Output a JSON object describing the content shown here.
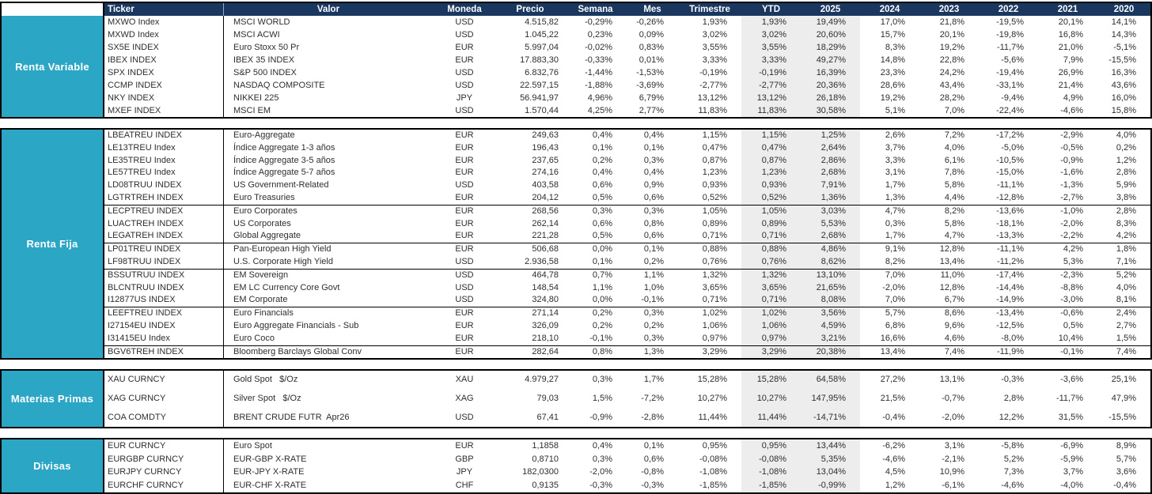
{
  "table": {
    "columns": [
      "Ticker",
      "Valor",
      "Moneda",
      "Precio",
      "Semana",
      "Mes",
      "Trimestre",
      "YTD",
      "2025",
      "2024",
      "2023",
      "2022",
      "2021",
      "2020"
    ],
    "sections": [
      {
        "id": "renta-variable",
        "label": "Renta Variable",
        "has_header": true,
        "groups": [
          [
            [
              "MXWO Index",
              "MSCI WORLD",
              "USD",
              "4.515,82",
              "-0,29%",
              "-0,26%",
              "1,93%",
              "1,93%",
              "19,49%",
              "17,0%",
              "21,8%",
              "-19,5%",
              "20,1%",
              "14,1%"
            ],
            [
              "MXWD Index",
              "MSCI ACWI",
              "USD",
              "1.045,22",
              "0,23%",
              "0,09%",
              "3,02%",
              "3,02%",
              "20,60%",
              "15,7%",
              "20,1%",
              "-19,8%",
              "16,8%",
              "14,3%"
            ],
            [
              "SX5E INDEX",
              "Euro Stoxx 50 Pr",
              "EUR",
              "5.997,04",
              "-0,02%",
              "0,83%",
              "3,55%",
              "3,55%",
              "18,29%",
              "8,3%",
              "19,2%",
              "-11,7%",
              "21,0%",
              "-5,1%"
            ],
            [
              "IBEX INDEX",
              "IBEX 35 INDEX",
              "EUR",
              "17.883,30",
              "-0,33%",
              "0,01%",
              "3,33%",
              "3,33%",
              "49,27%",
              "14,8%",
              "22,8%",
              "-5,6%",
              "7,9%",
              "-15,5%"
            ],
            [
              "SPX INDEX",
              "S&P 500 INDEX",
              "USD",
              "6.832,76",
              "-1,44%",
              "-1,53%",
              "-0,19%",
              "-0,19%",
              "16,39%",
              "23,3%",
              "24,2%",
              "-19,4%",
              "26,9%",
              "16,3%"
            ],
            [
              "CCMP INDEX",
              "NASDAQ COMPOSITE",
              "USD",
              "22.597,15",
              "-1,88%",
              "-3,69%",
              "-2,77%",
              "-2,77%",
              "20,36%",
              "28,6%",
              "43,4%",
              "-33,1%",
              "21,4%",
              "43,6%"
            ],
            [
              "NKY INDEX",
              "NIKKEI 225",
              "JPY",
              "56.941,97",
              "4,96%",
              "6,79%",
              "13,12%",
              "13,12%",
              "26,18%",
              "19,2%",
              "28,2%",
              "-9,4%",
              "4,9%",
              "16,0%"
            ],
            [
              "MXEF INDEX",
              "MSCI EM",
              "USD",
              "1.570,44",
              "4,25%",
              "2,77%",
              "11,83%",
              "11,83%",
              "30,58%",
              "5,1%",
              "7,0%",
              "-22,4%",
              "-4,6%",
              "15,8%"
            ]
          ]
        ]
      },
      {
        "id": "renta-fija",
        "label": "Renta Fija",
        "has_header": false,
        "groups": [
          [
            [
              "LBEATREU INDEX",
              "Euro-Aggregate",
              "EUR",
              "249,63",
              "0,4%",
              "0,4%",
              "1,15%",
              "1,15%",
              "1,25%",
              "2,6%",
              "7,2%",
              "-17,2%",
              "-2,9%",
              "4,0%"
            ],
            [
              "LE13TREU Index",
              "Índice Aggregate 1-3 años",
              "EUR",
              "196,43",
              "0,1%",
              "0,1%",
              "0,47%",
              "0,47%",
              "2,64%",
              "3,7%",
              "4,0%",
              "-5,0%",
              "-0,5%",
              "0,2%"
            ],
            [
              "LE35TREU Index",
              "Índice Aggregate 3-5 años",
              "EUR",
              "237,65",
              "0,2%",
              "0,3%",
              "0,87%",
              "0,87%",
              "2,86%",
              "3,3%",
              "6,1%",
              "-10,5%",
              "-0,9%",
              "1,2%"
            ],
            [
              "LE57TREU Index",
              "Índice Aggregate 5-7 años",
              "EUR",
              "274,16",
              "0,4%",
              "0,4%",
              "1,23%",
              "1,23%",
              "2,68%",
              "3,1%",
              "7,8%",
              "-15,0%",
              "-1,6%",
              "2,8%"
            ],
            [
              "LD08TRUU INDEX",
              "US Government-Related",
              "USD",
              "403,58",
              "0,6%",
              "0,9%",
              "0,93%",
              "0,93%",
              "7,91%",
              "1,7%",
              "5,8%",
              "-11,1%",
              "-1,3%",
              "5,9%"
            ],
            [
              "LGTRTREH INDEX",
              "Euro Treasuries",
              "EUR",
              "204,12",
              "0,5%",
              "0,6%",
              "0,52%",
              "0,52%",
              "1,36%",
              "1,3%",
              "4,4%",
              "-12,8%",
              "-2,7%",
              "3,8%"
            ]
          ],
          [
            [
              "LECPTREU INDEX",
              "Euro Corporates",
              "EUR",
              "268,56",
              "0,3%",
              "0,3%",
              "1,05%",
              "1,05%",
              "3,03%",
              "4,7%",
              "8,2%",
              "-13,6%",
              "-1,0%",
              "2,8%"
            ],
            [
              "LUACTREH INDEX",
              "US Corporates",
              "EUR",
              "262,14",
              "0,6%",
              "0,8%",
              "0,89%",
              "0,89%",
              "5,53%",
              "0,3%",
              "5,8%",
              "-18,1%",
              "-2,0%",
              "8,3%"
            ],
            [
              "LEGATREH INDEX",
              "Global Aggregate",
              "EUR",
              "221,28",
              "0,5%",
              "0,6%",
              "0,71%",
              "0,71%",
              "2,68%",
              "1,7%",
              "4,7%",
              "-13,3%",
              "-2,2%",
              "4,2%"
            ]
          ],
          [
            [
              "LP01TREU INDEX",
              "Pan-European High Yield",
              "EUR",
              "506,68",
              "0,0%",
              "0,1%",
              "0,88%",
              "0,88%",
              "4,86%",
              "9,1%",
              "12,8%",
              "-11,1%",
              "4,2%",
              "1,8%"
            ],
            [
              "LF98TRUU INDEX",
              "U.S. Corporate High Yield",
              "USD",
              "2.936,58",
              "0,1%",
              "0,2%",
              "0,76%",
              "0,76%",
              "8,62%",
              "8,2%",
              "13,4%",
              "-11,2%",
              "5,3%",
              "7,1%"
            ]
          ],
          [
            [
              "BSSUTRUU INDEX",
              "EM Sovereign",
              "USD",
              "464,78",
              "0,7%",
              "1,1%",
              "1,32%",
              "1,32%",
              "13,10%",
              "7,0%",
              "11,0%",
              "-17,4%",
              "-2,3%",
              "5,2%"
            ],
            [
              "BLCNTRUU INDEX",
              "EM LC Currency Core Govt",
              "USD",
              "148,54",
              "1,1%",
              "1,0%",
              "3,65%",
              "3,65%",
              "21,65%",
              "-2,0%",
              "12,8%",
              "-14,4%",
              "-8,8%",
              "4,0%"
            ],
            [
              "I12877US INDEX",
              "EM Corporate",
              "USD",
              "324,80",
              "0,0%",
              "-0,1%",
              "0,71%",
              "0,71%",
              "8,08%",
              "7,0%",
              "6,7%",
              "-14,9%",
              "-3,0%",
              "8,1%"
            ]
          ],
          [
            [
              "LEEFTREU INDEX",
              "Euro Financials",
              "EUR",
              "271,14",
              "0,2%",
              "0,3%",
              "1,02%",
              "1,02%",
              "3,56%",
              "5,7%",
              "8,6%",
              "-13,4%",
              "-0,6%",
              "2,4%"
            ],
            [
              "I27154EU INDEX",
              "Euro Aggregate Financials - Sub",
              "EUR",
              "326,09",
              "0,2%",
              "0,2%",
              "1,06%",
              "1,06%",
              "4,59%",
              "6,8%",
              "9,6%",
              "-12,5%",
              "0,5%",
              "2,7%"
            ],
            [
              "I31415EU Index",
              "Euro Coco",
              "EUR",
              "218,10",
              "-0,1%",
              "0,3%",
              "0,97%",
              "0,97%",
              "3,21%",
              "16,6%",
              "4,6%",
              "-8,0%",
              "10,4%",
              "1,5%"
            ]
          ],
          [
            [
              "BGV6TREH INDEX",
              "Bloomberg Barclays Global Conv",
              "EUR",
              "282,64",
              "0,8%",
              "1,3%",
              "3,29%",
              "3,29%",
              "20,38%",
              "13,4%",
              "7,4%",
              "-11,9%",
              "-0,1%",
              "7,4%"
            ]
          ]
        ]
      },
      {
        "id": "materias-primas",
        "label": "Materias Primas",
        "has_header": false,
        "groups": [
          [
            [
              "XAU CURNCY",
              "Gold Spot   $/Oz",
              "XAU",
              "4.979,27",
              "0,3%",
              "1,7%",
              "15,28%",
              "15,28%",
              "64,58%",
              "27,2%",
              "13,1%",
              "-0,3%",
              "-3,6%",
              "25,1%"
            ],
            [
              "XAG CURNCY",
              "Silver Spot   $/Oz",
              "XAG",
              "79,03",
              "1,5%",
              "-7,2%",
              "10,27%",
              "10,27%",
              "147,95%",
              "21,5%",
              "-0,7%",
              "2,8%",
              "-11,7%",
              "47,9%"
            ],
            [
              "COA COMDTY",
              "BRENT CRUDE FUTR  Apr26",
              "USD",
              "67,41",
              "-0,9%",
              "-2,8%",
              "11,44%",
              "11,44%",
              "-14,71%",
              "-0,4%",
              "-2,0%",
              "12,2%",
              "31,5%",
              "-15,5%"
            ]
          ]
        ]
      },
      {
        "id": "divisas",
        "label": "Divisas",
        "has_header": false,
        "groups": [
          [
            [
              "EUR CURNCY",
              "Euro Spot",
              "EUR",
              "1,1858",
              "0,4%",
              "0,1%",
              "0,95%",
              "0,95%",
              "13,44%",
              "-6,2%",
              "3,1%",
              "-5,8%",
              "-6,9%",
              "8,9%"
            ],
            [
              "EURGBP CURNCY",
              "EUR-GBP X-RATE",
              "GBP",
              "0,8710",
              "0,3%",
              "0,6%",
              "-0,08%",
              "-0,08%",
              "5,35%",
              "-4,6%",
              "-2,1%",
              "5,2%",
              "-5,9%",
              "5,7%"
            ],
            [
              "EURJPY CURNCY",
              "EUR-JPY X-RATE",
              "JPY",
              "182,0300",
              "-2,0%",
              "-0,8%",
              "-1,08%",
              "-1,08%",
              "13,04%",
              "4,5%",
              "10,9%",
              "7,3%",
              "3,7%",
              "3,6%"
            ],
            [
              "EURCHF CURNCY",
              "EUR-CHF X-RATE",
              "CHF",
              "0,9135",
              "-0,3%",
              "-0,3%",
              "-1,85%",
              "-1,85%",
              "-0,99%",
              "1,2%",
              "-6,1%",
              "-4,6%",
              "-4,0%",
              "-0,4%"
            ]
          ]
        ]
      }
    ]
  },
  "colors": {
    "header_bg": "#1A3760",
    "sidebar_bg": "#2CA6C5",
    "highlight_band_bg": "#EDEDED",
    "border": "#000000"
  }
}
